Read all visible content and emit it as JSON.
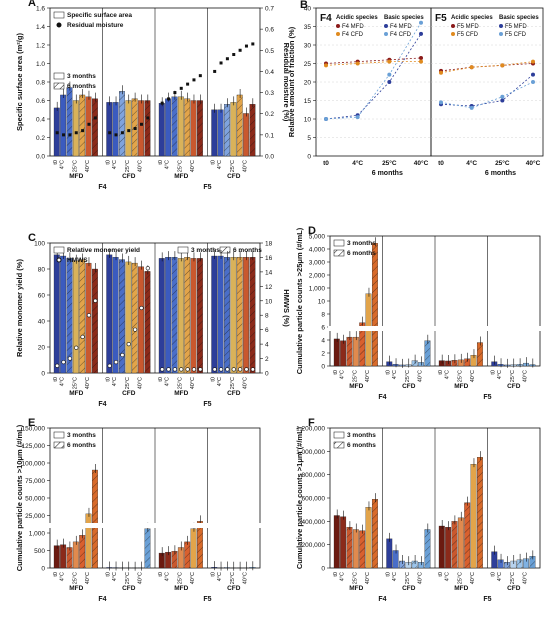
{
  "chart_data": [
    {
      "panel": "A",
      "type": "bar",
      "ylabel": "Specific surface area (m²/g)",
      "y2label": "Residual moisture (%)",
      "ylim": [
        0,
        1.6
      ],
      "y2lim": [
        0,
        0.7
      ],
      "legend": [
        "Specific surface area",
        "Residual moisture",
        "3 months",
        "6 months"
      ],
      "groups": [
        {
          "label": "MFD",
          "formulation": "F4",
          "color": "#2d3e9a",
          "values": [
            0.52,
            0.66,
            0.74,
            0.6,
            0.66,
            0.64,
            0.62
          ],
          "moisture": [
            0.11,
            0.1,
            0.1,
            0.11,
            0.12,
            0.15,
            0.18
          ]
        },
        {
          "label": "CFD",
          "formulation": "F4",
          "color": "#2d3e9a",
          "values": [
            0.58,
            0.58,
            0.7,
            0.6,
            0.62,
            0.6,
            0.6
          ],
          "moisture": [
            0.11,
            0.1,
            0.11,
            0.12,
            0.13,
            0.15,
            0.18
          ]
        },
        {
          "label": "MFD",
          "formulation": "F5",
          "color": "#2d3e9a",
          "values": [
            0.57,
            0.62,
            0.64,
            0.64,
            0.62,
            0.6,
            0.6
          ],
          "moisture": [
            0.25,
            0.27,
            0.3,
            0.32,
            0.34,
            0.36,
            0.38
          ]
        },
        {
          "label": "CFD",
          "formulation": "F5",
          "color": "#2d3e9a",
          "values": [
            0.5,
            0.5,
            0.56,
            0.58,
            0.66,
            0.46,
            0.56
          ],
          "moisture": [
            0.4,
            0.44,
            0.46,
            0.48,
            0.5,
            0.52,
            0.53
          ]
        }
      ],
      "xticks": [
        "t0",
        "4°C",
        "25°C",
        "40°C"
      ]
    },
    {
      "panel": "B",
      "type": "line",
      "ylabel": "Relative amount of fraction (%)",
      "xlabel": "6 months",
      "ylim": [
        0,
        40
      ],
      "x": [
        "t0",
        "4°C",
        "25°C",
        "40°C"
      ],
      "subplots": [
        {
          "name": "F4",
          "series": [
            {
              "name": "F4 MFD",
              "color": "#8b1a1a",
              "values": [
                25,
                25.5,
                26,
                26.5
              ]
            },
            {
              "name": "F4 CFD",
              "color": "#e08a1e",
              "values": [
                24.5,
                25,
                25.5,
                25.5
              ]
            },
            {
              "name": "F4 MFD",
              "color": "#2d3e9a",
              "values": [
                10,
                11,
                20,
                33
              ]
            },
            {
              "name": "F4 CFD",
              "color": "#6aa0d6",
              "values": [
                10,
                10.5,
                22,
                36
              ]
            }
          ]
        },
        {
          "name": "F5",
          "series": [
            {
              "name": "F5 MFD",
              "color": "#8b1a1a",
              "values": [
                23,
                24,
                24.5,
                25
              ]
            },
            {
              "name": "F5 CFD",
              "color": "#e08a1e",
              "values": [
                22.5,
                24,
                24.5,
                25.5
              ]
            },
            {
              "name": "F5 MFD",
              "color": "#2d3e9a",
              "values": [
                14,
                13.5,
                15,
                22
              ]
            },
            {
              "name": "F5 CFD",
              "color": "#6aa0d6",
              "values": [
                14.5,
                13,
                16,
                20
              ]
            }
          ]
        }
      ],
      "legend_titles": [
        "Acidic species",
        "Basic species"
      ]
    },
    {
      "panel": "C",
      "type": "bar",
      "ylabel": "Relative monomer yield (%)",
      "y2label": "HMWS (%)",
      "ylim": [
        0,
        110
      ],
      "y2lim": [
        0,
        18
      ],
      "legend": [
        "Relative monomer yield",
        "HMWS",
        "3 months",
        "6 months"
      ],
      "groups": [
        {
          "label": "MFD",
          "formulation": "F4",
          "values": [
            100,
            99,
            97,
            95,
            96,
            93,
            88
          ],
          "hmws": [
            1.0,
            1.5,
            2.0,
            3.5,
            5.0,
            8.0,
            10.0
          ]
        },
        {
          "label": "CFD",
          "formulation": "F4",
          "values": [
            100,
            98,
            96,
            94,
            93,
            90,
            86
          ],
          "hmws": [
            1.0,
            1.5,
            2.5,
            4.0,
            6.0,
            9.0,
            14.5
          ]
        },
        {
          "label": "MFD",
          "formulation": "F5",
          "values": [
            97,
            98,
            98,
            97,
            98,
            97,
            97
          ],
          "hmws": [
            0.5,
            0.5,
            0.5,
            0.5,
            0.5,
            0.5,
            0.5
          ]
        },
        {
          "label": "CFD",
          "formulation": "F5",
          "values": [
            99,
            99,
            98,
            98,
            98,
            98,
            98
          ],
          "hmws": [
            0.5,
            0.5,
            0.5,
            0.5,
            0.5,
            0.5,
            0.5
          ]
        }
      ],
      "xticks": [
        "t0",
        "4°C",
        "25°C",
        "40°C"
      ]
    },
    {
      "panel": "D",
      "type": "bar",
      "ylabel": "Cumulative particle counts >25μm (#/mL)",
      "legend": [
        "3 months",
        "6 months"
      ],
      "yticks": [
        "0",
        "2",
        "4",
        "6",
        "8",
        "10",
        "1,000",
        "2,000",
        "3,000",
        "4,000",
        "5,000"
      ],
      "groups": [
        {
          "label": "MFD",
          "formulation": "F4",
          "values": [
            7.5,
            7,
            8,
            8,
            12,
            20,
            34
          ]
        },
        {
          "label": "CFD",
          "formulation": "F4",
          "values": [
            1.2,
            0.5,
            0.3,
            0.4,
            1.5,
            1,
            7
          ]
        },
        {
          "label": "MFD",
          "formulation": "F5",
          "values": [
            1.5,
            1.4,
            1.6,
            1.7,
            2,
            3,
            6.5
          ]
        },
        {
          "label": "CFD",
          "formulation": "F5",
          "values": [
            1.2,
            0.5,
            0.3,
            0.4,
            0.5,
            0.8,
            0.4
          ]
        }
      ]
    },
    {
      "panel": "E",
      "type": "bar",
      "ylabel": "Cumulative particle counts >10μm (#/mL)",
      "legend": [
        "3 months",
        "6 months"
      ],
      "yticks": [
        "0",
        "500",
        "1,000",
        "25,000",
        "50,000",
        "75,000",
        "100,000",
        "125,000",
        "150,000"
      ],
      "groups": [
        {
          "label": "MFD",
          "formulation": "F4",
          "values": [
            24000,
            25000,
            22000,
            28000,
            35000,
            58000,
            105000
          ]
        },
        {
          "label": "CFD",
          "formulation": "F4",
          "values": [
            600,
            500,
            350,
            400,
            300,
            400,
            42000
          ]
        },
        {
          "label": "MFD",
          "formulation": "F5",
          "values": [
            16000,
            17000,
            18000,
            22000,
            28000,
            42000,
            50000
          ]
        },
        {
          "label": "CFD",
          "formulation": "F5",
          "values": [
            900,
            400,
            600,
            300,
            250,
            350,
            800
          ]
        }
      ]
    },
    {
      "panel": "F",
      "type": "bar",
      "ylabel": "Cumulative particle counts >1μm (#/mL)",
      "legend": [
        "3 months",
        "6 months"
      ],
      "yticks": [
        "0",
        "200,000",
        "400,000",
        "600,000",
        "800,000",
        "1,000,000",
        "1,200,000"
      ],
      "groups": [
        {
          "label": "MFD",
          "formulation": "F4",
          "values": [
            450000,
            440000,
            350000,
            330000,
            320000,
            520000,
            590000
          ]
        },
        {
          "label": "CFD",
          "formulation": "F4",
          "values": [
            250000,
            150000,
            60000,
            50000,
            60000,
            50000,
            330000
          ]
        },
        {
          "label": "MFD",
          "formulation": "F5",
          "values": [
            360000,
            350000,
            400000,
            430000,
            560000,
            890000,
            950000
          ]
        },
        {
          "label": "CFD",
          "formulation": "F5",
          "values": [
            140000,
            70000,
            50000,
            60000,
            70000,
            80000,
            100000
          ]
        }
      ]
    }
  ]
}
